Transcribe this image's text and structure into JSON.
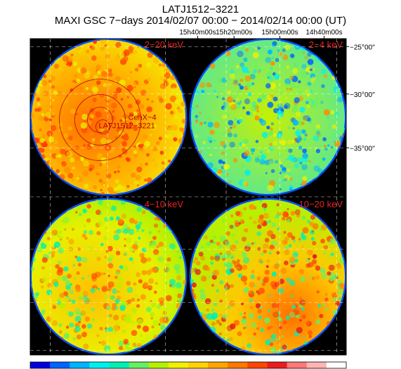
{
  "chart_data": {
    "type": "heatmap",
    "title": "LATJ1512−3221",
    "subtitle": "MAXI GSC 7−days 2014/02/07 00:00 − 2014/02/14 00:00 (UT)",
    "ra_ticks": [
      "15h40m00s",
      "15h20m00s",
      "15h00m00s",
      "14h40m00s"
    ],
    "dec_ticks": [
      "−25°00′′",
      "−30°00′′",
      "−35°00′′"
    ],
    "panels": [
      {
        "band": "2−20 keV",
        "mean_level": 0.7,
        "hot_region": "center",
        "sources": [
          {
            "name": "CenX−4"
          },
          {
            "name": "LATJ1512−3221"
          }
        ]
      },
      {
        "band": "2−4 keV",
        "mean_level": 0.42,
        "hot_region": "none",
        "sources": []
      },
      {
        "band": "4−10 keV",
        "mean_level": 0.52,
        "hot_region": "left",
        "sources": []
      },
      {
        "band": "10−20 keV",
        "mean_level": 0.55,
        "hot_region": "bottom-right",
        "sources": []
      }
    ],
    "colorbar": [
      "#0000dc",
      "#0064ff",
      "#00b4ff",
      "#00f0f0",
      "#00f0b4",
      "#64f064",
      "#b4f000",
      "#f0f000",
      "#ffd200",
      "#ffa500",
      "#ff7800",
      "#ff4600",
      "#e81e1e",
      "#ff7878",
      "#ffb4b4",
      "#ffffff"
    ],
    "grid": true
  }
}
